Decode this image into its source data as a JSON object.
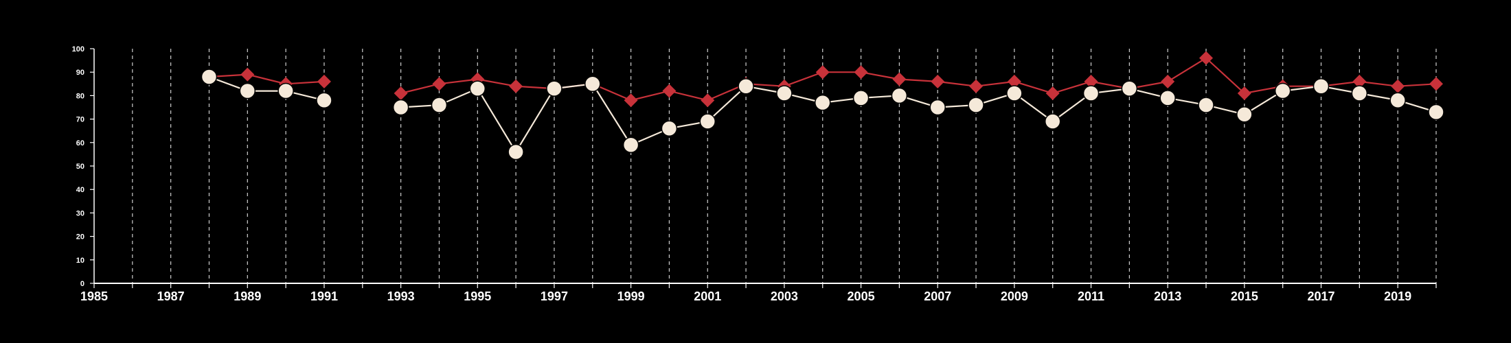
{
  "chart_data": {
    "type": "line",
    "title": "",
    "xlabel": "",
    "ylabel": "",
    "xlim": [
      1985,
      2020
    ],
    "ylim": [
      0,
      100
    ],
    "x_ticks": [
      1985,
      1987,
      1989,
      1991,
      1993,
      1995,
      1997,
      1999,
      2001,
      2003,
      2005,
      2007,
      2009,
      2011,
      2013,
      2015,
      2017,
      2019
    ],
    "y_ticks": [
      0,
      10,
      20,
      30,
      40,
      50,
      60,
      70,
      80,
      90,
      100
    ],
    "vertical_grid": "dashed, every year",
    "horizontal_grid": false,
    "legend": "none",
    "x": [
      1988,
      1989,
      1990,
      1991,
      1993,
      1994,
      1995,
      1996,
      1997,
      1998,
      1999,
      2000,
      2001,
      2002,
      2003,
      2004,
      2005,
      2006,
      2007,
      2008,
      2009,
      2010,
      2011,
      2012,
      2013,
      2014,
      2015,
      2016,
      2017,
      2018,
      2019,
      2020
    ],
    "series": [
      {
        "marker": "diamond",
        "color": "#c8323a",
        "values": [
          88,
          89,
          85,
          86,
          81,
          85,
          87,
          84,
          83,
          85,
          78,
          82,
          78,
          85,
          84,
          90,
          90,
          87,
          86,
          84,
          86,
          81,
          86,
          83,
          86,
          96,
          81,
          84,
          84,
          86,
          84,
          85
        ]
      },
      {
        "marker": "circle",
        "color": "#f5e9d9",
        "values": [
          88,
          82,
          82,
          78,
          75,
          76,
          83,
          56,
          83,
          85,
          59,
          66,
          69,
          84,
          81,
          77,
          79,
          80,
          75,
          76,
          81,
          69,
          81,
          83,
          79,
          76,
          72,
          82,
          84,
          81,
          78,
          73
        ]
      }
    ]
  }
}
